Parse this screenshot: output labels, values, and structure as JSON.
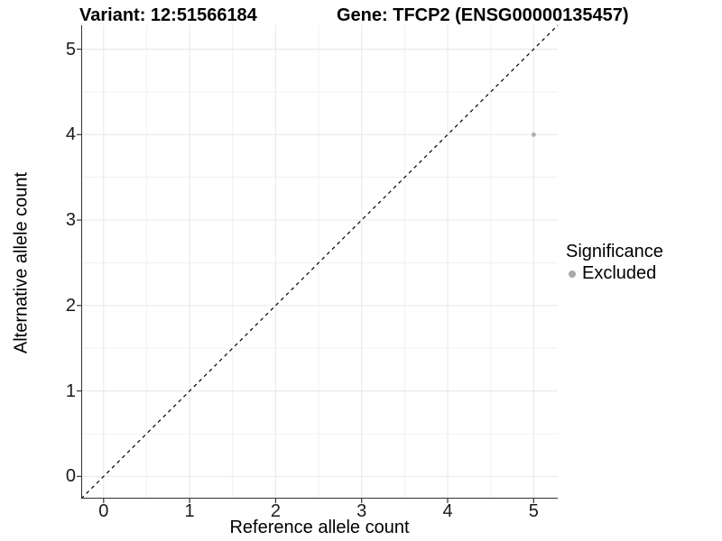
{
  "title": {
    "variant": "Variant: 12:51566184",
    "gene": "Gene: TFCP2 (ENSG00000135457)"
  },
  "axes": {
    "x_label": "Reference allele count",
    "y_label": "Alternative allele count"
  },
  "legend": {
    "title": "Significance",
    "items": [
      {
        "label": "Excluded",
        "color": "#aaaaaa"
      }
    ]
  },
  "colors": {
    "background": "#ffffff",
    "axis_line": "#333333",
    "tick_mark": "#333333",
    "grid_major": "#e7e7e7",
    "grid_minor": "#f1f1f1",
    "reference_line": "#000000",
    "point": "#b0b0b0"
  },
  "chart_data": {
    "type": "scatter",
    "title": "Variant: 12:51566184   Gene: TFCP2 (ENSG00000135457)",
    "xlabel": "Reference allele count",
    "ylabel": "Alternative allele count",
    "xlim": [
      -0.26,
      5.28
    ],
    "ylim": [
      -0.26,
      5.28
    ],
    "xticks": [
      0,
      1,
      2,
      3,
      4,
      5
    ],
    "yticks": [
      0,
      1,
      2,
      3,
      4,
      5
    ],
    "grid": "major at integers, minor at 0.5 steps",
    "legend_position": "right",
    "series": [
      {
        "name": "Excluded",
        "color": "#b0b0b0",
        "points": [
          {
            "x": 5,
            "y": 4
          }
        ]
      }
    ],
    "reference_line": {
      "type": "identity y=x",
      "style": "dashed",
      "color": "#000000"
    }
  }
}
